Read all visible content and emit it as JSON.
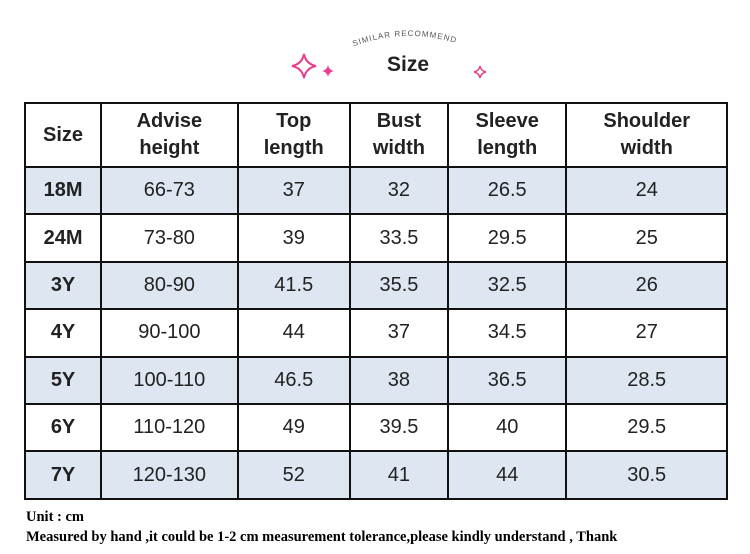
{
  "header": {
    "arc_text": "SIMILAR RECOMMEND",
    "title": "Size"
  },
  "table": {
    "columns": [
      "Size",
      "Advise height",
      "Top length",
      "Bust width",
      "Sleeve length",
      "Shoulder width"
    ],
    "rows": [
      [
        "18M",
        "66-73",
        "37",
        "32",
        "26.5",
        "24"
      ],
      [
        "24M",
        "73-80",
        "39",
        "33.5",
        "29.5",
        "25"
      ],
      [
        "3Y",
        "80-90",
        "41.5",
        "35.5",
        "32.5",
        "26"
      ],
      [
        "4Y",
        "90-100",
        "44",
        "37",
        "34.5",
        "27"
      ],
      [
        "5Y",
        "100-110",
        "46.5",
        "38",
        "36.5",
        "28.5"
      ],
      [
        "6Y",
        "110-120",
        "49",
        "39.5",
        "40",
        "29.5"
      ],
      [
        "7Y",
        "120-130",
        "52",
        "41",
        "44",
        "30.5"
      ]
    ]
  },
  "notes": [
    "Unit : cm",
    "Measured by hand ,it could be 1-2 cm measurement tolerance,please kindly understand , Thank"
  ]
}
